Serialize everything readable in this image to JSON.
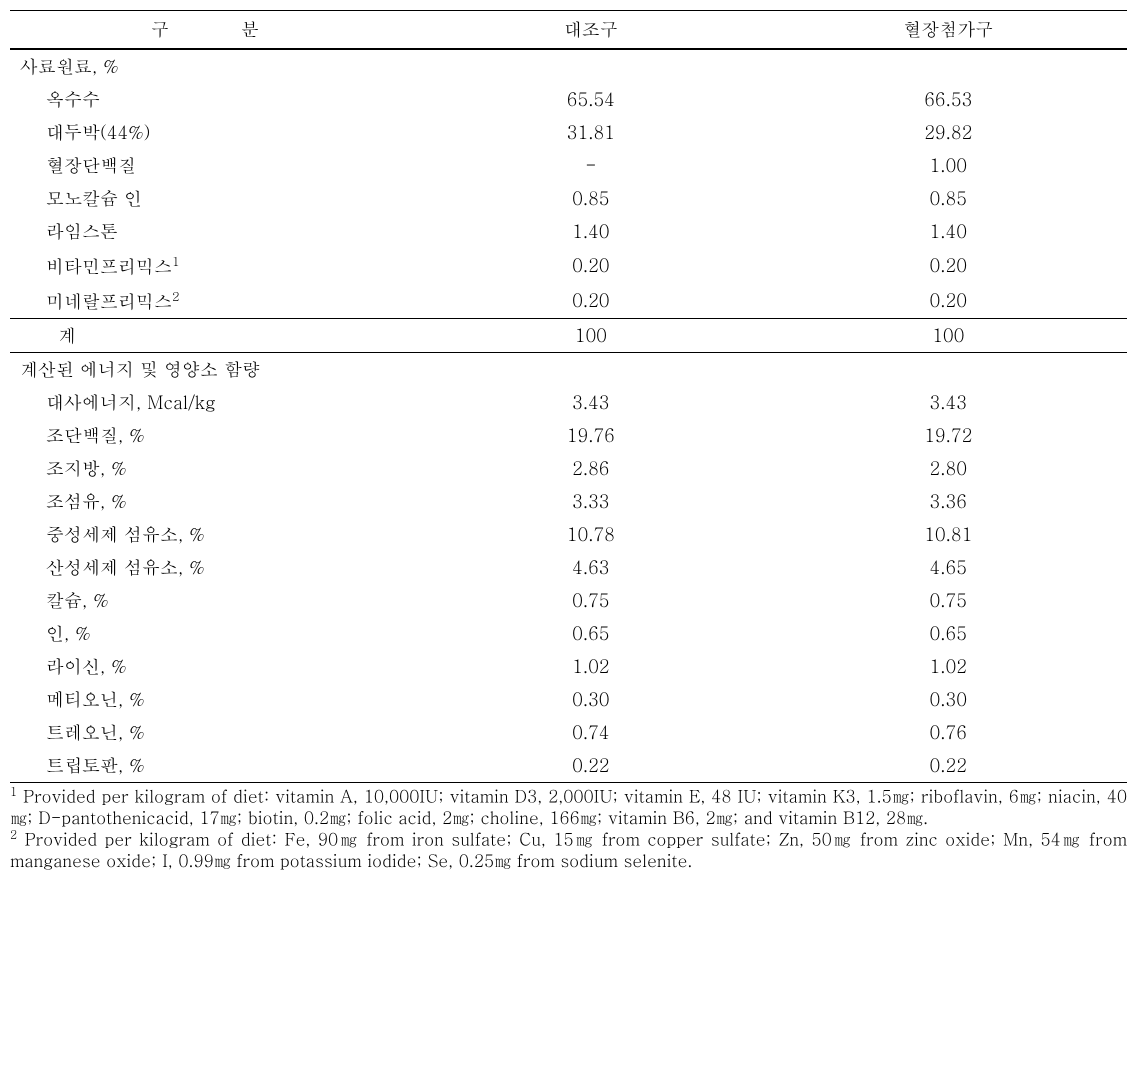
{
  "headers": {
    "col1": "구　　분",
    "col2": "대조구",
    "col3": "혈장첨가구"
  },
  "section1_title": "사료원료, %",
  "ingredients": [
    {
      "name": "옥수수",
      "v1": "65.54",
      "v2": "66.53"
    },
    {
      "name": "대두박(44%)",
      "v1": "31.81",
      "v2": "29.82"
    },
    {
      "name": "혈장단백질",
      "v1": "-",
      "v2": "1.00"
    },
    {
      "name": "모노칼슘 인",
      "v1": "0.85",
      "v2": "0.85"
    },
    {
      "name": "라임스톤",
      "v1": "1.40",
      "v2": "1.40"
    }
  ],
  "vitamin_premix": {
    "name": "비타민프리믹스",
    "sup": "1",
    "v1": "0.20",
    "v2": "0.20"
  },
  "mineral_premix": {
    "name": "미네랄프리믹스",
    "sup": "2",
    "v1": "0.20",
    "v2": "0.20"
  },
  "total": {
    "label": "계",
    "v1": "100",
    "v2": "100"
  },
  "section2_title": "계산된 에너지 및 영양소 함량",
  "nutrients": [
    {
      "name": "대사에너지, Mcal/kg",
      "v1": "3.43",
      "v2": "3.43"
    },
    {
      "name": "조단백질, %",
      "v1": "19.76",
      "v2": "19.72"
    },
    {
      "name": "조지방, %",
      "v1": "2.86",
      "v2": "2.80"
    },
    {
      "name": "조섬유, %",
      "v1": "3.33",
      "v2": "3.36"
    },
    {
      "name": "중성세제 섬유소, %",
      "v1": "10.78",
      "v2": "10.81"
    },
    {
      "name": "산성세제 섬유소, %",
      "v1": "4.63",
      "v2": "4.65"
    },
    {
      "name": "칼슘, %",
      "v1": "0.75",
      "v2": "0.75"
    },
    {
      "name": "인, %",
      "v1": "0.65",
      "v2": "0.65"
    },
    {
      "name": "라이신, %",
      "v1": "1.02",
      "v2": "1.02"
    },
    {
      "name": "메티오닌, %",
      "v1": "0.30",
      "v2": "0.30"
    },
    {
      "name": "트레오닌, %",
      "v1": "0.74",
      "v2": "0.76"
    },
    {
      "name": "트립토판, %",
      "v1": "0.22",
      "v2": "0.22"
    }
  ],
  "footnote1_sup": "1",
  "footnote1": " Provided per kilogram of diet: vitamin A, 10,000IU; vitamin  D3, 2,000IU; vitamin E, 48 IU; vitamin K3, 1.5㎎; riboflavin, 6㎎; niacin, 40㎎; D-pantothenicacid, 17㎎; biotin, 0.2㎎; folic acid, 2㎎; choline, 166㎎; vitamin B6, 2㎎; and vitamin B12, 28㎎.",
  "footnote2_sup": "2",
  "footnote2": " Provided per kilogram of diet: Fe, 90㎎ from iron sulfate; Cu, 15㎎ from copper sulfate; Zn, 50㎎ from zinc oxide; Mn, 54㎎ from manganese oxide; I, 0.99㎎ from potassium iodide; Se, 0.25㎎ from sodium selenite."
}
